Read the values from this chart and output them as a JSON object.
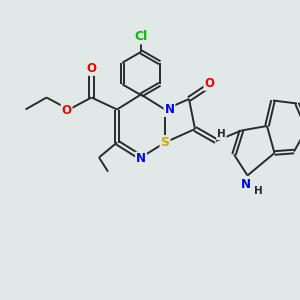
{
  "background_color": "#e0e8e8",
  "bond_color": "#2a2a2a",
  "bond_width": 1.4,
  "atom_colors": {
    "C": "#2a2a2a",
    "N": "#0000ee",
    "O": "#ee0000",
    "S": "#ccaa00",
    "Cl": "#00bb00",
    "H": "#2a2a2a"
  },
  "font_size": 8.5,
  "fig_size": [
    3.0,
    3.0
  ],
  "dpi": 100,
  "xlim": [
    0,
    10
  ],
  "ylim": [
    0,
    10
  ]
}
